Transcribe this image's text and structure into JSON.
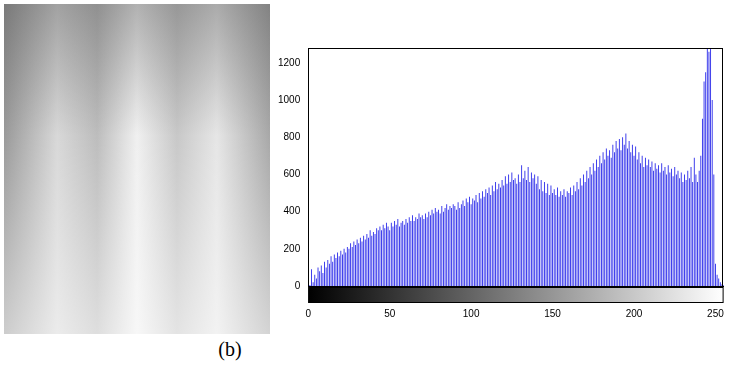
{
  "chart_data": {
    "type": "bar",
    "caption": "(b)",
    "color": "#2b2bea",
    "grid": false,
    "xlim": [
      0,
      255
    ],
    "xticks": [
      0,
      50,
      100,
      150,
      200,
      250
    ],
    "ylim": [
      0,
      1280
    ],
    "yticks": [
      0,
      200,
      400,
      600,
      800,
      1000,
      1200
    ],
    "x": [
      0,
      1,
      2,
      3,
      4,
      5,
      6,
      7,
      8,
      9,
      10,
      11,
      12,
      13,
      14,
      15,
      16,
      17,
      18,
      19,
      20,
      21,
      22,
      23,
      24,
      25,
      26,
      27,
      28,
      29,
      30,
      31,
      32,
      33,
      34,
      35,
      36,
      37,
      38,
      39,
      40,
      41,
      42,
      43,
      44,
      45,
      46,
      47,
      48,
      49,
      50,
      51,
      52,
      53,
      54,
      55,
      56,
      57,
      58,
      59,
      60,
      61,
      62,
      63,
      64,
      65,
      66,
      67,
      68,
      69,
      70,
      71,
      72,
      73,
      74,
      75,
      76,
      77,
      78,
      79,
      80,
      81,
      82,
      83,
      84,
      85,
      86,
      87,
      88,
      89,
      90,
      91,
      92,
      93,
      94,
      95,
      96,
      97,
      98,
      99,
      100,
      101,
      102,
      103,
      104,
      105,
      106,
      107,
      108,
      109,
      110,
      111,
      112,
      113,
      114,
      115,
      116,
      117,
      118,
      119,
      120,
      121,
      122,
      123,
      124,
      125,
      126,
      127,
      128,
      129,
      130,
      131,
      132,
      133,
      134,
      135,
      136,
      137,
      138,
      139,
      140,
      141,
      142,
      143,
      144,
      145,
      146,
      147,
      148,
      149,
      150,
      151,
      152,
      153,
      154,
      155,
      156,
      157,
      158,
      159,
      160,
      161,
      162,
      163,
      164,
      165,
      166,
      167,
      168,
      169,
      170,
      171,
      172,
      173,
      174,
      175,
      176,
      177,
      178,
      179,
      180,
      181,
      182,
      183,
      184,
      185,
      186,
      187,
      188,
      189,
      190,
      191,
      192,
      193,
      194,
      195,
      196,
      197,
      198,
      199,
      200,
      201,
      202,
      203,
      204,
      205,
      206,
      207,
      208,
      209,
      210,
      211,
      212,
      213,
      214,
      215,
      216,
      217,
      218,
      219,
      220,
      221,
      222,
      223,
      224,
      225,
      226,
      227,
      228,
      229,
      230,
      231,
      232,
      233,
      234,
      235,
      236,
      237,
      238,
      239,
      240,
      241,
      242,
      243,
      244,
      245,
      246,
      247,
      248,
      249,
      250,
      251,
      252,
      253,
      254,
      255
    ],
    "values": [
      10,
      5,
      90,
      20,
      60,
      40,
      100,
      80,
      110,
      70,
      130,
      100,
      140,
      120,
      160,
      130,
      170,
      150,
      180,
      160,
      190,
      170,
      200,
      180,
      210,
      200,
      230,
      210,
      240,
      220,
      250,
      230,
      260,
      240,
      270,
      250,
      280,
      260,
      300,
      270,
      290,
      280,
      310,
      300,
      320,
      300,
      330,
      310,
      340,
      320,
      300,
      340,
      320,
      350,
      330,
      360,
      320,
      340,
      350,
      330,
      360,
      340,
      370,
      350,
      380,
      350,
      370,
      360,
      390,
      370,
      380,
      360,
      390,
      370,
      400,
      380,
      410,
      390,
      420,
      400,
      410,
      390,
      430,
      400,
      420,
      440,
      410,
      430,
      420,
      440,
      430,
      410,
      450,
      420,
      440,
      460,
      430,
      470,
      450,
      480,
      440,
      470,
      460,
      490,
      450,
      500,
      470,
      510,
      480,
      520,
      500,
      530,
      490,
      540,
      510,
      560,
      520,
      550,
      530,
      570,
      540,
      590,
      550,
      600,
      560,
      610,
      570,
      580,
      550,
      600,
      560,
      650,
      580,
      620,
      570,
      640,
      560,
      610,
      580,
      600,
      550,
      590,
      520,
      570,
      510,
      560,
      500,
      550,
      490,
      540,
      500,
      520,
      490,
      530,
      480,
      510,
      490,
      520,
      480,
      510,
      500,
      530,
      490,
      540,
      510,
      560,
      520,
      580,
      540,
      600,
      560,
      620,
      580,
      640,
      600,
      660,
      620,
      680,
      640,
      700,
      660,
      720,
      680,
      740,
      700,
      730,
      690,
      760,
      720,
      780,
      740,
      790,
      730,
      800,
      760,
      820,
      740,
      780,
      720,
      760,
      700,
      750,
      680,
      720,
      660,
      700,
      640,
      690,
      650,
      680,
      640,
      670,
      620,
      660,
      630,
      650,
      610,
      660,
      620,
      640,
      600,
      650,
      610,
      630,
      590,
      640,
      600,
      620,
      580,
      610,
      560,
      600,
      570,
      620,
      580,
      640,
      560,
      690,
      600,
      560,
      620,
      700,
      900,
      1100,
      1150,
      1280,
      1260,
      1280,
      1000,
      600,
      120,
      60,
      40,
      20,
      10,
      5
    ]
  }
}
